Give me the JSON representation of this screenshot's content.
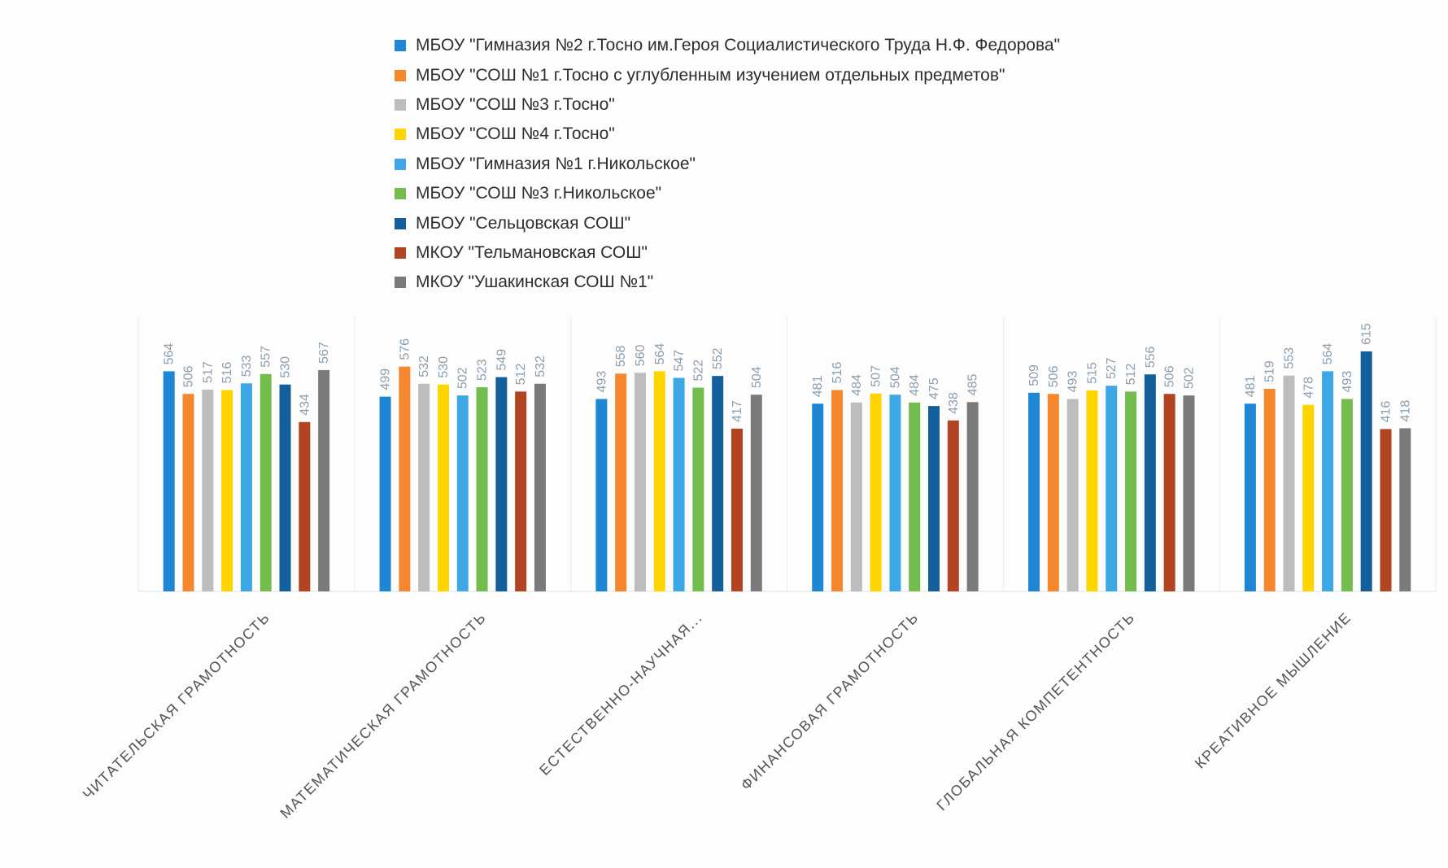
{
  "chart_data": {
    "type": "bar",
    "categories": [
      "ЧИТАТЕЛЬСКАЯ ГРАМОТНОСТЬ",
      "МАТЕМАТИЧЕСКАЯ ГРАМОТНОСТЬ",
      "ЕСТЕСТВЕННО-НАУЧНАЯ...",
      "ФИНАНСОВАЯ ГРАМОТНОСТЬ",
      "ГЛОБАЛЬНАЯ КОМПЕТЕНТНОСТЬ",
      "КРЕАТИВНОЕ МЫШЛЕНИЕ"
    ],
    "series": [
      {
        "name": "МБОУ \"Гимназия №2 г.Тосно им.Героя Социалистического Труда Н.Ф. Федорова\"",
        "color": "#1e86d3",
        "values": [
          564,
          499,
          493,
          481,
          509,
          481
        ]
      },
      {
        "name": "МБОУ \"СОШ №1 г.Тосно с углубленным изучением отдельных предметов\"",
        "color": "#f5882e",
        "values": [
          506,
          576,
          558,
          516,
          506,
          519
        ]
      },
      {
        "name": "МБОУ \"СОШ №3 г.Тосно\"",
        "color": "#bdbdbd",
        "values": [
          517,
          532,
          560,
          484,
          493,
          553
        ]
      },
      {
        "name": "МБОУ \"СОШ №4 г.Тосно\"",
        "color": "#ffd500",
        "values": [
          516,
          530,
          564,
          507,
          515,
          478
        ]
      },
      {
        "name": "МБОУ \"Гимназия №1 г.Никольское\"",
        "color": "#3ea7e6",
        "values": [
          533,
          502,
          547,
          504,
          527,
          564
        ]
      },
      {
        "name": "МБОУ \"СОШ №3 г.Никольское\"",
        "color": "#72bd4c",
        "values": [
          557,
          523,
          522,
          484,
          512,
          493
        ]
      },
      {
        "name": "МБОУ \"Сельцовская СОШ\"",
        "color": "#135f9c",
        "values": [
          530,
          549,
          552,
          475,
          556,
          615
        ]
      },
      {
        "name": "МКОУ \"Тельмановская СОШ\"",
        "color": "#b34422",
        "values": [
          434,
          512,
          417,
          438,
          506,
          416
        ]
      },
      {
        "name": "МКОУ \"Ушакинская СОШ №1\"",
        "color": "#7a7a7a",
        "values": [
          567,
          532,
          504,
          485,
          502,
          418
        ]
      }
    ],
    "ylim": [
      0,
      660
    ],
    "grid": false,
    "legend_position": "top"
  }
}
